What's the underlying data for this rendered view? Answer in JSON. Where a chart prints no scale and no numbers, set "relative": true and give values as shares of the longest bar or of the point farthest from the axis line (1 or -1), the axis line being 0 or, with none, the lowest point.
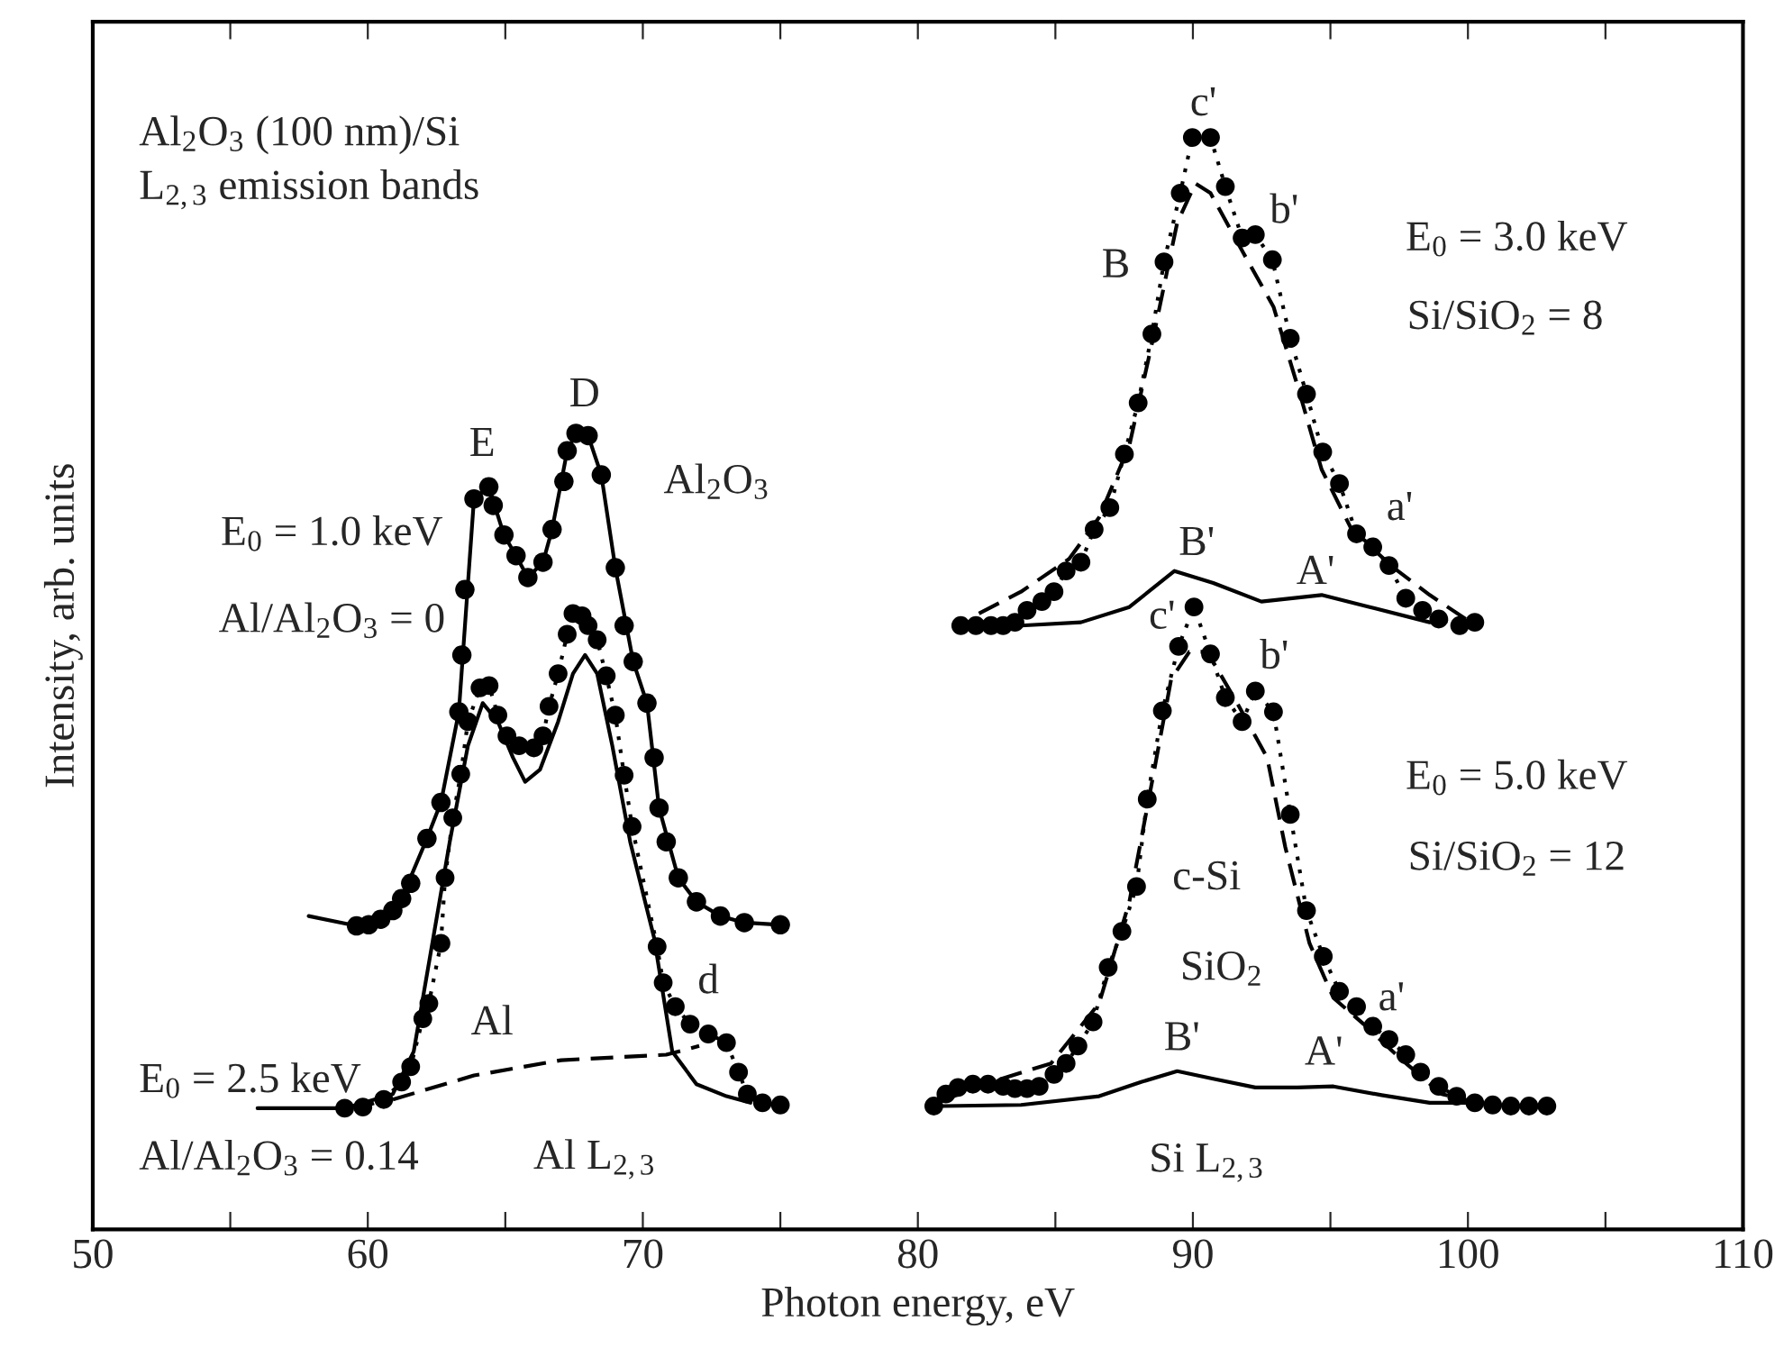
{
  "chart_data": {
    "type": "line",
    "relative": true,
    "xlabel": "Photon energy, eV",
    "ylabel": "Intensity, arb. units",
    "xlim": [
      50,
      110
    ],
    "xticks": [
      50,
      {
        "value": 55,
        "label": null
      },
      60,
      {
        "value": 65,
        "label": null
      },
      70,
      {
        "value": 75,
        "label": null
      },
      80,
      {
        "value": 85,
        "label": null
      },
      90,
      {
        "value": 95,
        "label": null
      },
      100,
      {
        "value": 105,
        "label": null
      },
      110
    ],
    "grid": false,
    "legend": false,
    "series": [
      {
        "type": "scatter",
        "marker": "circle",
        "color": "#000000",
        "x": [
          59.59,
          60.03,
          60.47,
          60.91,
          61.23,
          61.56,
          62.15,
          62.66,
          63.31,
          63.42,
          63.53,
          63.86,
          64.4,
          64.56,
          64.95,
          65.39,
          65.82,
          66.37,
          66.7,
          67.13,
          67.25,
          67.57,
          68.01,
          68.49,
          69.0,
          69.32,
          69.65,
          70.15,
          70.41,
          70.59,
          70.85,
          71.29,
          71.95,
          72.82,
          73.69,
          75.0
        ],
        "values": [
          0.278,
          0.279,
          0.284,
          0.292,
          0.303,
          0.317,
          0.358,
          0.391,
          0.474,
          0.526,
          0.586,
          0.669,
          0.68,
          0.663,
          0.636,
          0.617,
          0.597,
          0.611,
          0.641,
          0.685,
          0.713,
          0.729,
          0.727,
          0.691,
          0.606,
          0.553,
          0.52,
          0.482,
          0.432,
          0.386,
          0.355,
          0.322,
          0.3,
          0.287,
          0.281,
          0.279
        ]
      },
      {
        "marker": "none",
        "line_style": "solid",
        "color": "#000000",
        "x": [
          57.85,
          59.59,
          60.47,
          61.23,
          62.15,
          62.66,
          63.31,
          63.86,
          64.4,
          64.95,
          65.39,
          65.82,
          66.37,
          66.7,
          67.25,
          67.57,
          68.01,
          68.49,
          69.0,
          69.65,
          70.15,
          70.59,
          71.29,
          71.95,
          72.82,
          73.69,
          75.0
        ],
        "values": [
          0.287,
          0.278,
          0.284,
          0.303,
          0.358,
          0.391,
          0.474,
          0.669,
          0.68,
          0.636,
          0.617,
          0.597,
          0.611,
          0.641,
          0.713,
          0.729,
          0.727,
          0.691,
          0.606,
          0.52,
          0.482,
          0.386,
          0.322,
          0.3,
          0.287,
          0.281,
          0.279
        ]
      },
      {
        "marker": "circle",
        "line_style": "dotted",
        "color": "#000000",
        "x": [
          59.16,
          59.82,
          60.58,
          61.23,
          61.56,
          62.0,
          62.22,
          62.66,
          62.81,
          63.09,
          63.38,
          63.64,
          64.08,
          64.41,
          64.73,
          65.06,
          65.5,
          66.04,
          66.37,
          66.59,
          66.92,
          67.25,
          67.46,
          67.79,
          68.01,
          68.34,
          68.67,
          69.0,
          69.32,
          69.61,
          70.52,
          70.74,
          71.18,
          71.72,
          72.38,
          73.04,
          73.48,
          73.8,
          74.35,
          75.0
        ],
        "values": [
          0.111,
          0.112,
          0.119,
          0.135,
          0.149,
          0.193,
          0.207,
          0.262,
          0.322,
          0.377,
          0.417,
          0.465,
          0.496,
          0.498,
          0.471,
          0.452,
          0.443,
          0.441,
          0.452,
          0.479,
          0.509,
          0.545,
          0.564,
          0.562,
          0.553,
          0.54,
          0.507,
          0.471,
          0.416,
          0.369,
          0.259,
          0.226,
          0.204,
          0.188,
          0.179,
          0.171,
          0.144,
          0.124,
          0.116,
          0.114
        ]
      },
      {
        "marker": "none",
        "line_style": "solid",
        "color": "#000000",
        "x": [
          55.99,
          59.16,
          60.91,
          61.67,
          62.98,
          63.64,
          64.18,
          64.73,
          65.28,
          65.72,
          66.26,
          66.92,
          67.46,
          67.9,
          68.34,
          68.89,
          69.54,
          70.41,
          71.07,
          71.95,
          73.04,
          73.91
        ],
        "values": [
          0.111,
          0.111,
          0.124,
          0.163,
          0.355,
          0.443,
          0.482,
          0.465,
          0.432,
          0.41,
          0.421,
          0.465,
          0.509,
          0.526,
          0.509,
          0.443,
          0.355,
          0.267,
          0.163,
          0.133,
          0.122,
          0.116
        ]
      },
      {
        "marker": "none",
        "line_style": "dashed",
        "color": "#000000",
        "x": [
          60.91,
          63.86,
          67.03,
          70.85,
          72.05
        ],
        "values": [
          0.119,
          0.141,
          0.155,
          0.16,
          0.168
        ]
      },
      {
        "marker": "circle",
        "line_style": "dotted",
        "color": "#000000",
        "x": [
          81.56,
          82.11,
          82.66,
          83.1,
          83.53,
          83.97,
          84.51,
          84.95,
          85.39,
          85.93,
          86.41,
          86.98,
          87.51,
          88.01,
          88.51,
          88.95,
          89.54,
          89.98,
          90.64,
          91.18,
          91.79,
          92.27,
          92.89,
          93.54,
          94.13,
          94.72,
          95.33,
          95.95,
          96.54,
          97.13,
          97.74,
          98.35,
          98.94,
          99.7,
          100.25
        ],
        "values": [
          0.553,
          0.553,
          0.553,
          0.553,
          0.556,
          0.567,
          0.575,
          0.584,
          0.603,
          0.611,
          0.641,
          0.661,
          0.71,
          0.757,
          0.82,
          0.886,
          0.949,
          1.0,
          1.0,
          0.955,
          0.908,
          0.911,
          0.888,
          0.816,
          0.765,
          0.712,
          0.683,
          0.637,
          0.625,
          0.608,
          0.578,
          0.567,
          0.559,
          0.553,
          0.556
        ]
      },
      {
        "marker": "none",
        "line_style": "dashed",
        "color": "#000000",
        "x": [
          82.22,
          83.75,
          85.5,
          86.59,
          87.69,
          88.56,
          89.43,
          90.09,
          90.64,
          91.84,
          92.93,
          93.8,
          94.68,
          95.77,
          97.3,
          98.61,
          99.92
        ],
        "values": [
          0.564,
          0.584,
          0.614,
          0.652,
          0.718,
          0.817,
          0.922,
          0.958,
          0.949,
          0.894,
          0.845,
          0.773,
          0.696,
          0.641,
          0.606,
          0.581,
          0.559
        ]
      },
      {
        "marker": "none",
        "line_style": "solid",
        "color": "#000000",
        "x": [
          83.75,
          85.93,
          87.69,
          89.33,
          90.74,
          92.49,
          94.68,
          96.43,
          98.61
        ],
        "values": [
          0.553,
          0.556,
          0.57,
          0.603,
          0.592,
          0.575,
          0.581,
          0.57,
          0.556
        ]
      },
      {
        "marker": "circle",
        "line_style": "dotted",
        "color": "#000000",
        "x": [
          80.58,
          81.02,
          81.46,
          82.0,
          82.55,
          83.1,
          83.53,
          83.97,
          84.41,
          84.95,
          85.39,
          85.82,
          86.37,
          86.92,
          87.42,
          87.95,
          88.34,
          88.89,
          89.48,
          90.04,
          90.64,
          91.18,
          91.79,
          92.27,
          92.93,
          93.54,
          94.13,
          94.74,
          95.33,
          95.95,
          96.54,
          97.13,
          97.74,
          98.28,
          98.94,
          99.59,
          100.25,
          100.9,
          101.56,
          102.22,
          102.87
        ],
        "values": [
          0.113,
          0.124,
          0.13,
          0.133,
          0.133,
          0.131,
          0.129,
          0.129,
          0.131,
          0.142,
          0.152,
          0.168,
          0.19,
          0.24,
          0.273,
          0.314,
          0.394,
          0.475,
          0.534,
          0.57,
          0.527,
          0.487,
          0.465,
          0.493,
          0.474,
          0.38,
          0.292,
          0.25,
          0.218,
          0.204,
          0.186,
          0.174,
          0.16,
          0.144,
          0.131,
          0.122,
          0.116,
          0.114,
          0.113,
          0.113,
          0.113
        ]
      },
      {
        "marker": "none",
        "line_style": "dashed",
        "color": "#000000",
        "x": [
          80.69,
          82.66,
          84.84,
          86.59,
          87.69,
          88.56,
          89.21,
          89.87,
          90.52,
          91.61,
          92.7,
          93.36,
          94.24,
          95.11,
          96.21,
          97.52,
          99.05,
          100.36
        ],
        "values": [
          0.116,
          0.135,
          0.152,
          0.207,
          0.3,
          0.416,
          0.504,
          0.529,
          0.529,
          0.482,
          0.432,
          0.35,
          0.262,
          0.212,
          0.188,
          0.157,
          0.124,
          0.116
        ]
      },
      {
        "marker": "none",
        "line_style": "solid",
        "color": "#000000",
        "x": [
          80.9,
          83.75,
          86.59,
          88.12,
          89.43,
          90.74,
          92.27,
          93.8,
          95.11,
          96.86,
          98.61,
          100.36
        ],
        "values": [
          0.113,
          0.114,
          0.122,
          0.135,
          0.145,
          0.138,
          0.13,
          0.13,
          0.131,
          0.123,
          0.116,
          0.116
        ]
      }
    ],
    "annotations": [
      "Al$_{2}$O$_{3}$ (100 nm)/Si",
      "L$_{2,3}$ emission bands",
      "E",
      "D",
      "Al$_{2}$O$_{3}$",
      "E$_{0}$ = 1.0 keV",
      "Al/Al$_{2}$O$_{3}$ = 0",
      "E$_{0}$ = 2.5 keV",
      "Al",
      "d",
      "Al/Al$_{2}$O$_{3}$ = 0.14",
      "Al L$_{2,3}$",
      "c'",
      "b'",
      "B",
      "E$_{0}$ = 3.0 keV",
      "Si/SiO$_{2}$ = 8",
      "a'",
      "B'",
      "A'",
      "c'",
      "b'",
      "c-Si",
      "E$_{0}$ = 5.0 keV",
      "Si/SiO$_{2}$ = 12",
      "SiO$_{2}$",
      "a'",
      "B'",
      "A'",
      "Si L$_{2,3}$"
    ]
  }
}
